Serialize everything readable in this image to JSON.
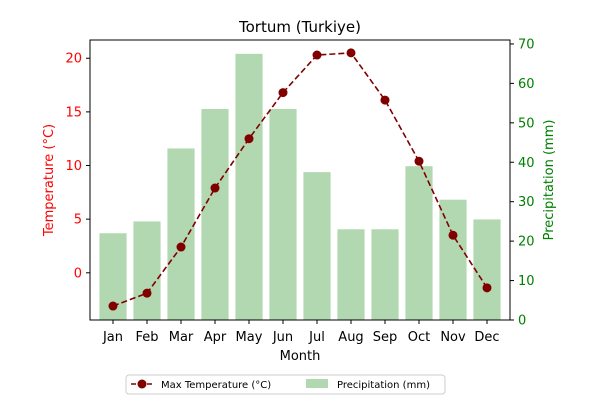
{
  "chart_data": {
    "type": "bar+line",
    "title": "Tortum (Turkiye)",
    "xlabel": "Month",
    "categories": [
      "Jan",
      "Feb",
      "Mar",
      "Apr",
      "May",
      "Jun",
      "Jul",
      "Aug",
      "Sep",
      "Oct",
      "Nov",
      "Dec"
    ],
    "left_axis": {
      "label": "Temperature (°C)",
      "color": "#ff0000",
      "ylim": [
        -4.4,
        21.7
      ],
      "ticks": [
        0,
        5,
        10,
        15,
        20
      ],
      "tick_labels": [
        "0",
        "5",
        "10",
        "15",
        "20"
      ]
    },
    "right_axis": {
      "label": "Precipitation (mm)",
      "color": "#008000",
      "ylim": [
        0,
        71
      ],
      "ticks": [
        0,
        10,
        20,
        30,
        40,
        50,
        60,
        70
      ],
      "tick_labels": [
        "0",
        "10",
        "20",
        "30",
        "40",
        "50",
        "60",
        "70"
      ]
    },
    "series": [
      {
        "name": "Max Temperature (°C)",
        "kind": "line",
        "axis": "left",
        "color": "#800000",
        "line_style": "dashed",
        "marker": "circle",
        "values": [
          -3.1,
          -1.9,
          2.4,
          7.9,
          12.5,
          16.8,
          20.3,
          20.5,
          16.1,
          10.4,
          3.5,
          -1.4
        ]
      },
      {
        "name": "Precipitation (mm)",
        "kind": "bar",
        "axis": "right",
        "color": "#b2d8b2",
        "values": [
          22,
          25,
          43.5,
          53.5,
          67.5,
          53.5,
          37.5,
          23,
          23,
          39,
          30.5,
          25.5
        ]
      }
    ],
    "legend": {
      "placement": "bottom-center",
      "entries": [
        "Max Temperature (°C)",
        "Precipitation (mm)"
      ]
    },
    "grid": false
  }
}
